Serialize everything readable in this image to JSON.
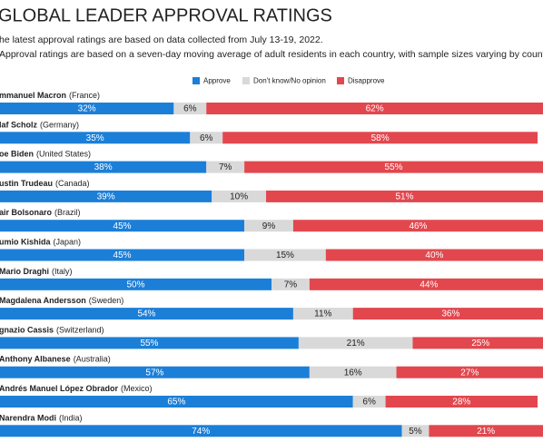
{
  "chart_data": {
    "type": "bar",
    "orientation": "horizontal",
    "stacked": true,
    "title": "GLOBAL LEADER APPROVAL RATINGS",
    "subtitles": [
      "he latest approval ratings are based on data collected from July 13-19, 2022.",
      "Approval ratings are based on a seven-day moving average of adult residents in each country, with sample sizes varying by country."
    ],
    "categories": [
      "mmanuel Macron",
      "laf Scholz",
      "oe Biden",
      "ustin Trudeau",
      "air Bolsonaro",
      "umio Kishida",
      "Mario Draghi",
      "Magdalena Andersson",
      "gnazio Cassis",
      "Anthony Albanese",
      "Andrés Manuel López Obrador",
      "Narendra Modi"
    ],
    "countries": [
      "(France)",
      "(Germany)",
      "(United States)",
      "(Canada)",
      "(Brazil)",
      "(Japan)",
      "(Italy)",
      "(Sweden)",
      "(Switzerland)",
      "(Australia)",
      "(Mexico)",
      "(India)"
    ],
    "xlim": [
      0,
      100
    ],
    "legend": "top",
    "series": [
      {
        "name": "Approve",
        "color": "#1b7fd8",
        "label_color": "#ffffff",
        "values": [
          32,
          35,
          38,
          39,
          45,
          45,
          50,
          54,
          55,
          57,
          65,
          74
        ],
        "value_labels": [
          "32%",
          "35%",
          "38%",
          "39%",
          "45%",
          "45%",
          "50%",
          "54%",
          "55%",
          "57%",
          "65%",
          "74%"
        ]
      },
      {
        "name": "Don't know/No opinion",
        "color": "#d9d9d9",
        "label_color": "#222222",
        "values": [
          6,
          6,
          7,
          10,
          9,
          15,
          7,
          11,
          21,
          16,
          6,
          5
        ],
        "value_labels": [
          "6%",
          "6%",
          "7%",
          "10%",
          "9%",
          "15%",
          "7%",
          "11%",
          "21%",
          "16%",
          "6%",
          "5%"
        ]
      },
      {
        "name": "Disapprove",
        "color": "#e2474e",
        "label_color": "#ffffff",
        "values": [
          62,
          58,
          55,
          51,
          46,
          40,
          44,
          36,
          25,
          27,
          28,
          21
        ],
        "value_labels": [
          "62%",
          "58%",
          "55%",
          "51%",
          "46%",
          "40%",
          "44%",
          "36%",
          "25%",
          "27%",
          "28%",
          "21%"
        ]
      }
    ]
  }
}
